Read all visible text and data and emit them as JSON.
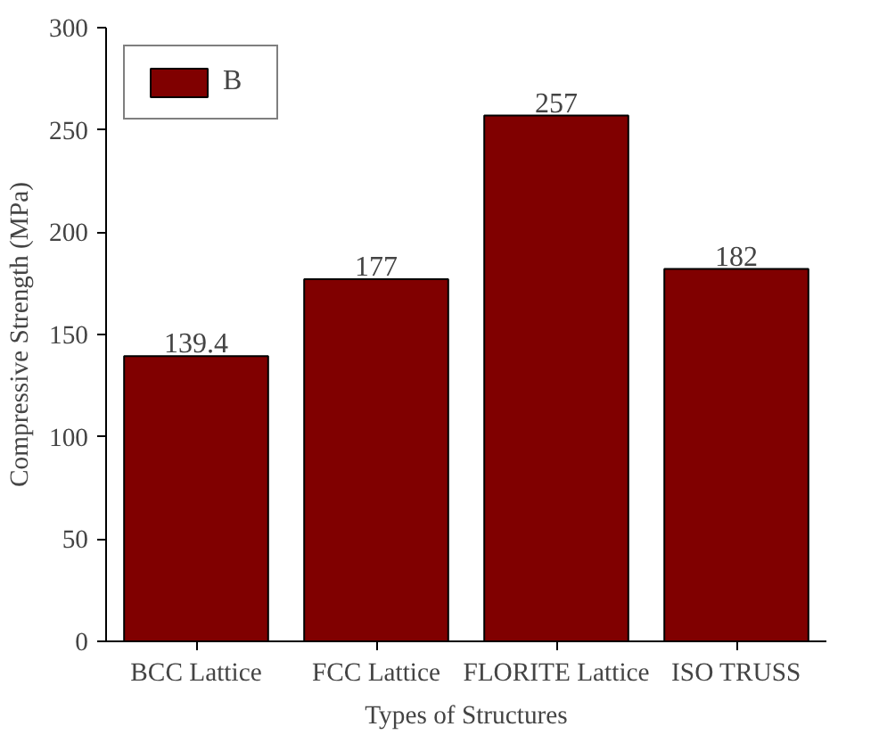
{
  "chart_data": {
    "type": "bar",
    "xlabel": "Types of Structures",
    "ylabel": "Compressive Strength (MPa)",
    "categories": [
      "BCC Lattice",
      "FCC Lattice",
      "FLORITE Lattice",
      "ISO TRUSS"
    ],
    "series": [
      {
        "name": "B",
        "color": "#800000",
        "values": [
          139.4,
          177,
          257,
          182
        ]
      }
    ],
    "ylim": [
      0,
      300
    ],
    "yticks": [
      0,
      50,
      100,
      150,
      200,
      250,
      300
    ],
    "data_labels": true,
    "legend": "top left",
    "grid": false
  }
}
